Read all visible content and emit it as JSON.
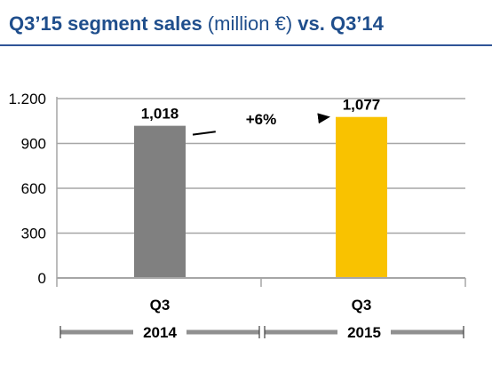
{
  "title": {
    "part1": "Q3’15 segment sales",
    "part2": " (million €)",
    "part3": " vs. Q3’14"
  },
  "colors": {
    "title": "#1f4e8c",
    "rule": "#2f5597",
    "bar_2014": "#808080",
    "bar_2015": "#f9c200",
    "grid": "#a6a6a6",
    "text": "#000000"
  },
  "chart_data": {
    "type": "bar",
    "categories": [
      "Q3",
      "Q3"
    ],
    "groups": [
      "2014",
      "2015"
    ],
    "values": [
      1018,
      1077
    ],
    "data_labels": [
      "1,018",
      "1,077"
    ],
    "ylim": [
      0,
      1200
    ],
    "yticks": [
      0,
      300,
      600,
      900,
      1200
    ],
    "ytick_labels": [
      "0",
      "300",
      "600",
      "900",
      "1.200"
    ],
    "grid": true,
    "annotation": "+6%",
    "title": "",
    "xlabel": "",
    "ylabel": ""
  }
}
